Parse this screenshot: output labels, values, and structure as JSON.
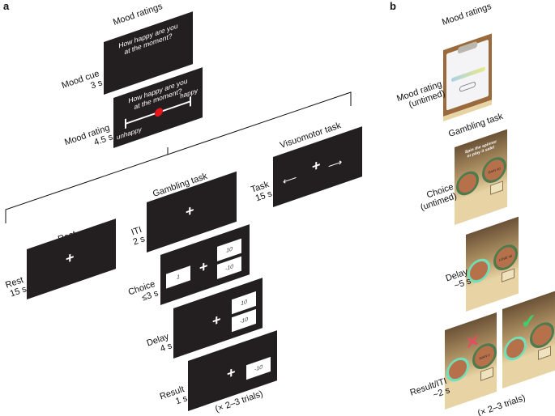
{
  "panel_a": {
    "letter": "a",
    "mood_ratings_title": "Mood ratings",
    "mood_cue": {
      "label": "Mood cue",
      "duration": "3 s",
      "question_line1": "How happy are you",
      "question_line2": "at the moment?"
    },
    "mood_rating": {
      "label": "Mood rating",
      "duration": "4.5 s",
      "question_line1": "How happy are you",
      "question_line2": "at the moment?",
      "low_anchor": "unhappy",
      "high_anchor": "happy",
      "slider_color": "#e8141b"
    },
    "visuomotor": {
      "title": "Visuomotor task",
      "label": "Task",
      "duration": "15 s"
    },
    "rest": {
      "title": "Rest",
      "label": "Rest",
      "duration": "15 s"
    },
    "gambling": {
      "title": "Gambling task",
      "iti": {
        "label": "ITI",
        "duration": "2 s"
      },
      "choice": {
        "label": "Choice",
        "duration": "≤3 s",
        "certain": "1",
        "gain": "10",
        "loss": "-10"
      },
      "delay": {
        "label": "Delay",
        "duration": "4 s",
        "gain": "10",
        "loss": "-10"
      },
      "result": {
        "label": "Result",
        "duration": "1 s",
        "outcome": "-10"
      },
      "repeat": "(× 2–3 trials)"
    }
  },
  "panel_b": {
    "letter": "b",
    "mood_ratings_title": "Mood ratings",
    "mood_rating": {
      "label": "Mood rating",
      "duration": "(untimed)"
    },
    "gambling_title": "Gambling task",
    "choice": {
      "label": "Choice",
      "duration": "(untimed)",
      "prompt": "Spin the spinner or play it safe!",
      "gain": "GAIN 40"
    },
    "delay": {
      "label": "Delay",
      "duration": "~5 s",
      "loss": "LOSE 45"
    },
    "result": {
      "label": "Result/ITI",
      "duration": "~2 s",
      "gain": "GAIN 0"
    },
    "repeat": "(× 2–3 trials)"
  }
}
